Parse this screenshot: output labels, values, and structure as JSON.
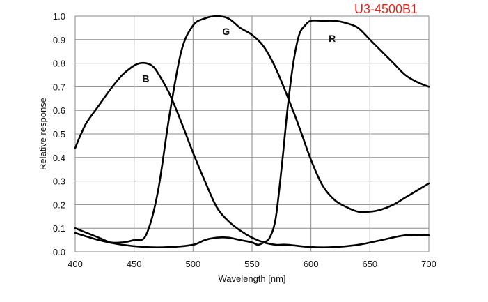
{
  "chart_data": {
    "type": "line",
    "title": "U3-4500B1",
    "xlabel": "Wavelength [nm]",
    "ylabel": "Relative response",
    "xlim": [
      400,
      700
    ],
    "ylim": [
      0,
      1.0
    ],
    "x_ticks": [
      "400",
      "450",
      "500",
      "550",
      "600",
      "650",
      "700"
    ],
    "y_ticks": [
      "0.0",
      "0.1",
      "0.2",
      "0.3",
      "0.4",
      "0.5",
      "0.6",
      "0.7",
      "0.8",
      "0.9",
      "1.0"
    ],
    "grid": true,
    "colors": {
      "curve": "#000000",
      "title": "#e3241b",
      "grid": "#8a8a8a"
    },
    "series": [
      {
        "name": "B",
        "x": [
          400,
          405,
          410,
          420,
          430,
          440,
          450,
          455,
          460,
          465,
          470,
          480,
          490,
          500,
          510,
          520,
          530,
          540,
          550,
          560,
          570,
          580,
          600,
          620,
          640,
          660,
          680,
          700
        ],
        "y": [
          0.44,
          0.5,
          0.55,
          0.62,
          0.69,
          0.75,
          0.79,
          0.8,
          0.8,
          0.79,
          0.76,
          0.67,
          0.55,
          0.42,
          0.3,
          0.19,
          0.13,
          0.09,
          0.06,
          0.04,
          0.03,
          0.03,
          0.02,
          0.02,
          0.03,
          0.05,
          0.07,
          0.07
        ]
      },
      {
        "name": "G",
        "x": [
          400,
          420,
          430,
          440,
          450,
          460,
          470,
          480,
          490,
          500,
          510,
          520,
          530,
          540,
          550,
          560,
          570,
          580,
          590,
          600,
          610,
          620,
          630,
          640,
          650,
          660,
          670,
          680,
          690,
          700
        ],
        "y": [
          0.1,
          0.06,
          0.04,
          0.04,
          0.05,
          0.07,
          0.25,
          0.58,
          0.85,
          0.96,
          0.99,
          1.0,
          0.99,
          0.95,
          0.92,
          0.87,
          0.78,
          0.66,
          0.53,
          0.39,
          0.28,
          0.22,
          0.19,
          0.17,
          0.17,
          0.18,
          0.2,
          0.23,
          0.26,
          0.29
        ]
      },
      {
        "name": "R",
        "x": [
          400,
          420,
          440,
          460,
          480,
          500,
          510,
          520,
          530,
          540,
          550,
          555,
          560,
          565,
          570,
          575,
          580,
          585,
          590,
          595,
          600,
          610,
          620,
          630,
          640,
          650,
          660,
          670,
          680,
          690,
          700
        ],
        "y": [
          0.08,
          0.05,
          0.03,
          0.02,
          0.02,
          0.03,
          0.05,
          0.06,
          0.06,
          0.05,
          0.04,
          0.03,
          0.04,
          0.06,
          0.14,
          0.35,
          0.6,
          0.8,
          0.92,
          0.96,
          0.98,
          0.98,
          0.98,
          0.97,
          0.95,
          0.9,
          0.85,
          0.8,
          0.75,
          0.72,
          0.7
        ]
      }
    ]
  }
}
